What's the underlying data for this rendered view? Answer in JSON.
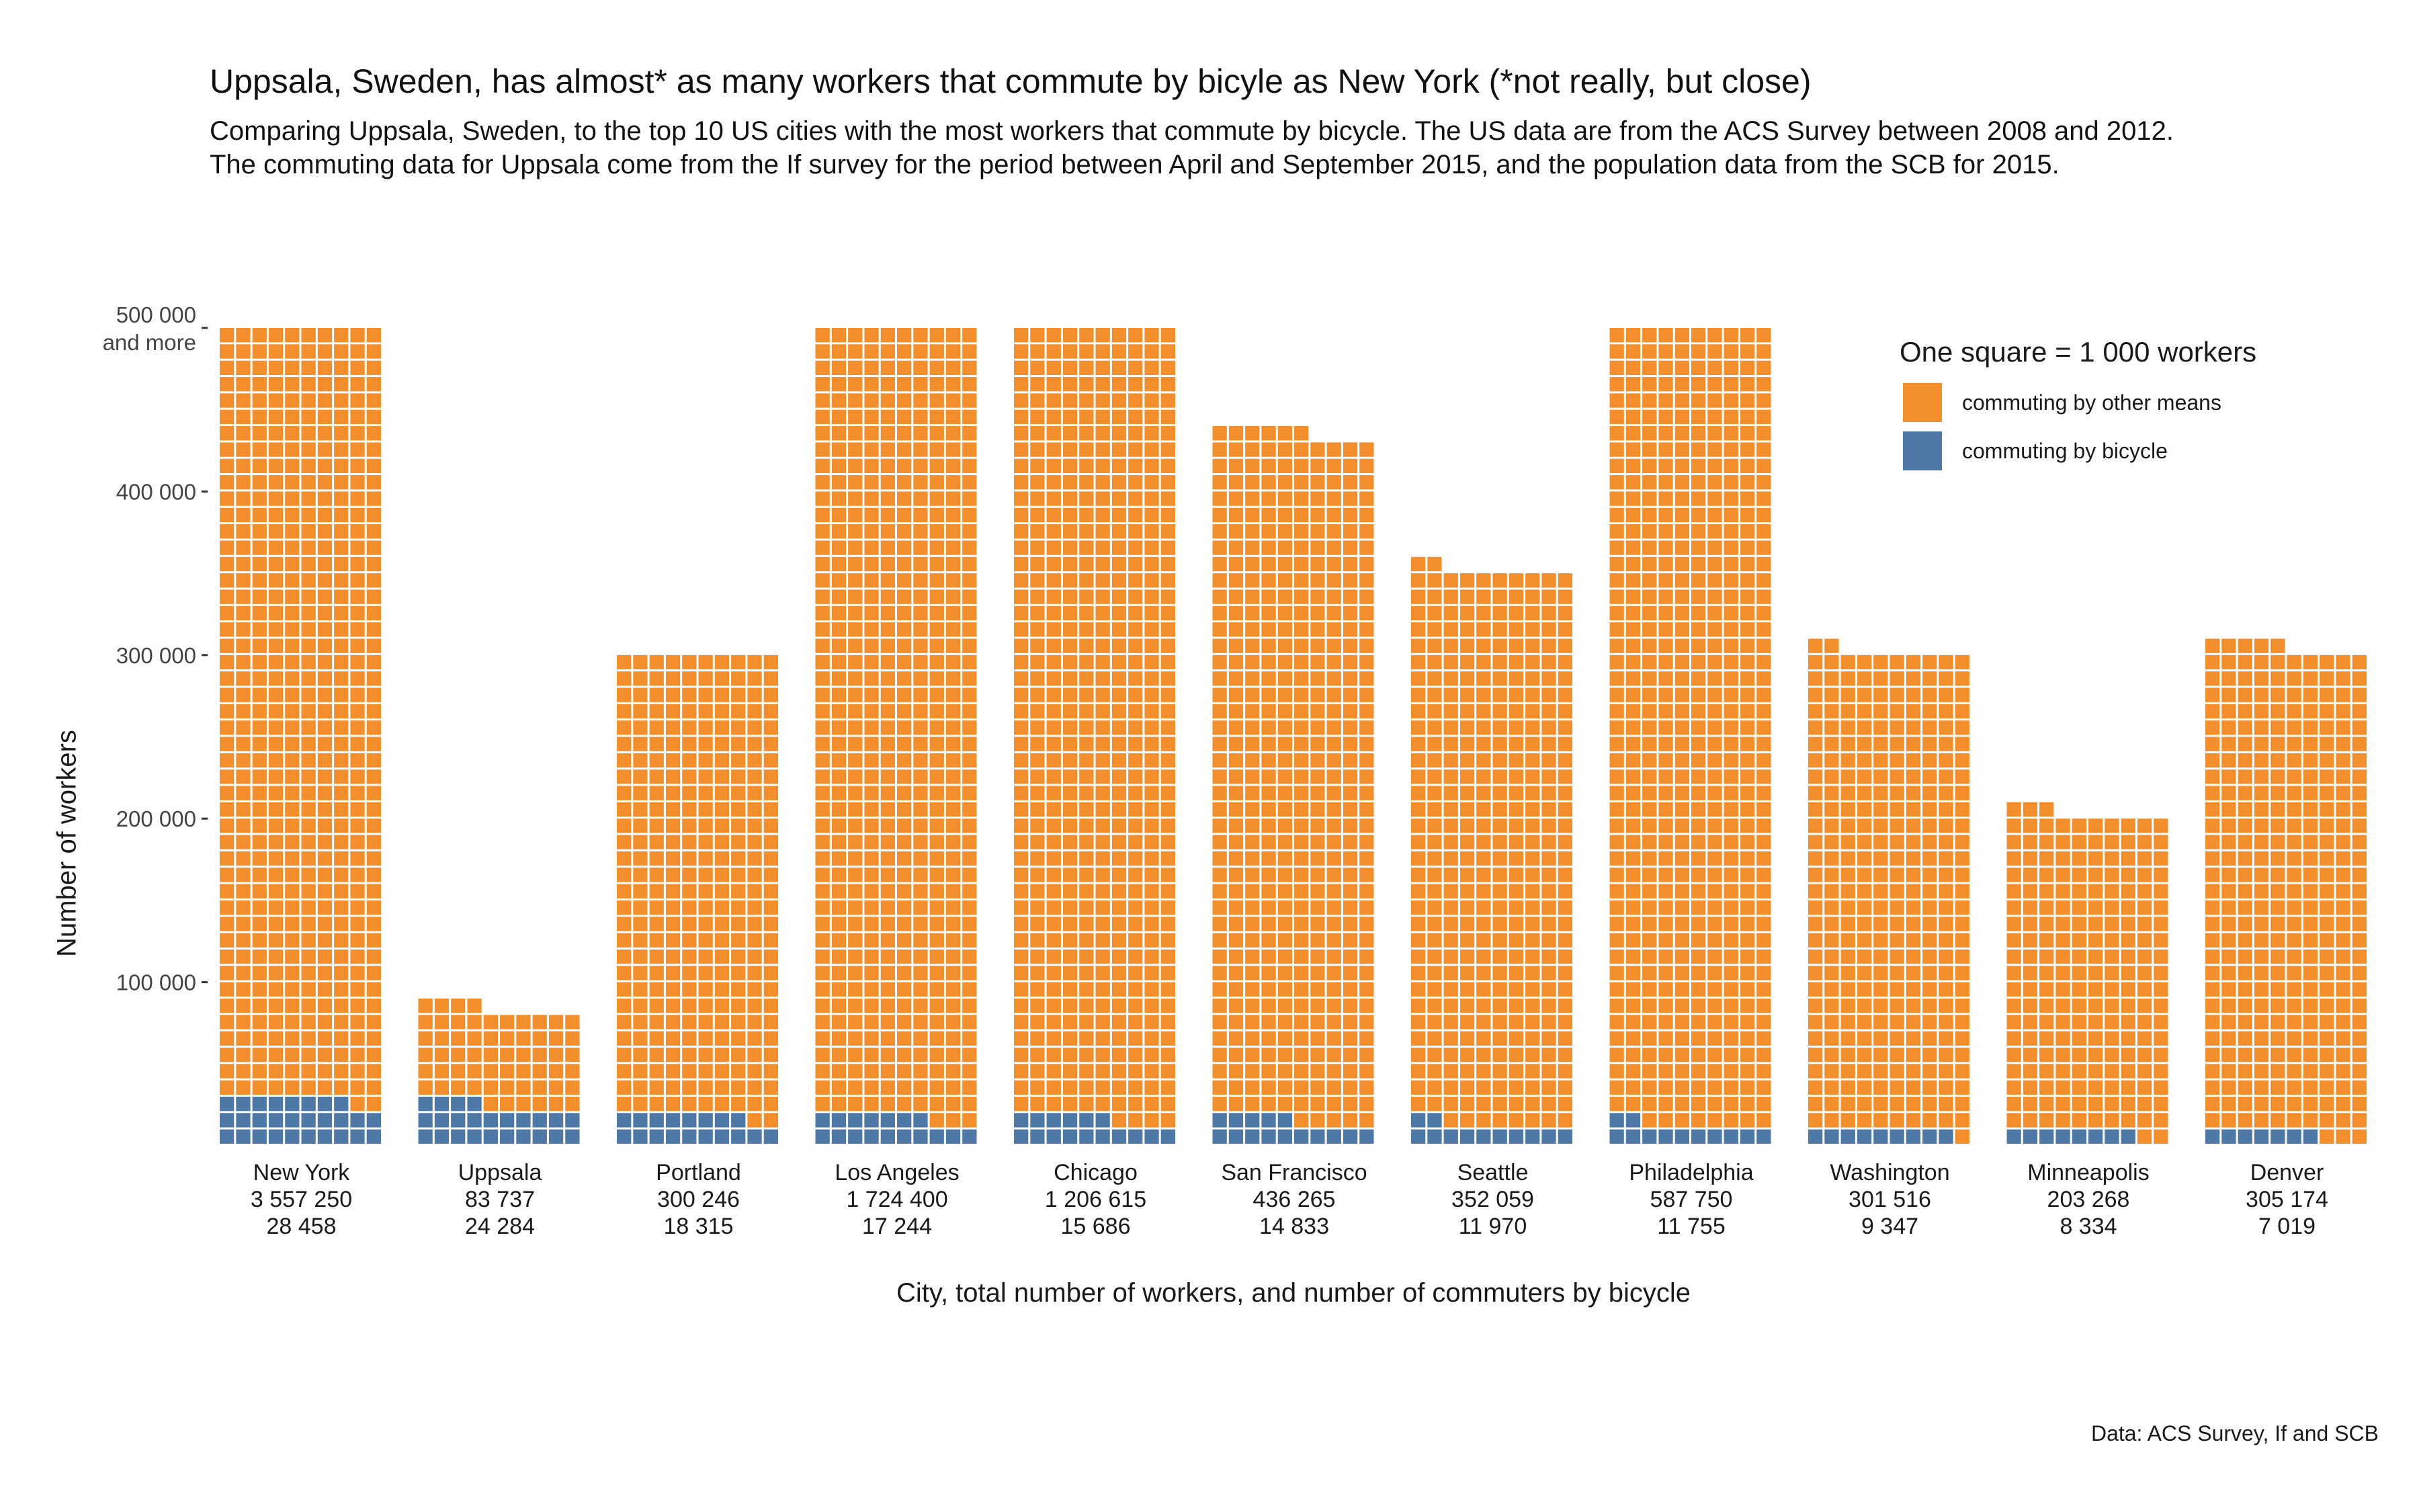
{
  "title": "Uppsala, Sweden, has almost* as many workers that commute by bicyle as New York (*not really, but close)",
  "subtitle": "Comparing Uppsala, Sweden, to the top 10 US cities with the most workers that commute by bicycle. The US data are from the ACS Survey between 2008 and 2012. The commuting data for Uppsala come from the If survey for the period between April and September 2015, and the population data from the SCB for 2015.",
  "caption": "Data: ACS Survey, If and SCB",
  "legend": {
    "title": "One square = 1 000 workers",
    "other_label": "commuting by other means",
    "bicycle_label": "commuting by bicycle"
  },
  "colors": {
    "other": "#F28E2B",
    "bicycle": "#4E79A7",
    "grid_line": "#ffffff"
  },
  "chart_data": {
    "type": "bar",
    "subtype": "waffle",
    "title": "Uppsala, Sweden, has almost* as many workers that commute by bicyle as New York (*not really, but close)",
    "xlabel": "City, total number of workers, and number of commuters by bicycle",
    "ylabel": "Number of workers",
    "ylim": [
      0,
      500000
    ],
    "cap": 500000,
    "unit_per_square": 1000,
    "y_ticks": [
      {
        "value": 100000,
        "label": "100 000"
      },
      {
        "value": 200000,
        "label": "200 000"
      },
      {
        "value": 300000,
        "label": "300 000"
      },
      {
        "value": 400000,
        "label": "400 000"
      },
      {
        "value": 500000,
        "label": "500 000",
        "label2": "and more"
      }
    ],
    "categories": [
      {
        "city": "New York",
        "total_label": "3 557 250",
        "bike_label": "28 458",
        "total": 3557250,
        "bicycle": 28458
      },
      {
        "city": "Uppsala",
        "total_label": "83 737",
        "bike_label": "24 284",
        "total": 83737,
        "bicycle": 24284
      },
      {
        "city": "Portland",
        "total_label": "300 246",
        "bike_label": "18 315",
        "total": 300246,
        "bicycle": 18315
      },
      {
        "city": "Los Angeles",
        "total_label": "1 724 400",
        "bike_label": "17 244",
        "total": 1724400,
        "bicycle": 17244
      },
      {
        "city": "Chicago",
        "total_label": "1 206 615",
        "bike_label": "15 686",
        "total": 1206615,
        "bicycle": 15686
      },
      {
        "city": "San Francisco",
        "total_label": "436 265",
        "bike_label": "14 833",
        "total": 436265,
        "bicycle": 14833
      },
      {
        "city": "Seattle",
        "total_label": "352 059",
        "bike_label": "11 970",
        "total": 352059,
        "bicycle": 11970
      },
      {
        "city": "Philadelphia",
        "total_label": "587 750",
        "bike_label": "11 755",
        "total": 587750,
        "bicycle": 11755
      },
      {
        "city": "Washington",
        "total_label": "301 516",
        "bike_label": "9 347",
        "total": 301516,
        "bicycle": 9347
      },
      {
        "city": "Minneapolis",
        "total_label": "203 268",
        "bike_label": "8 334",
        "total": 203268,
        "bicycle": 8334
      },
      {
        "city": "Denver",
        "total_label": "305 174",
        "bike_label": "7 019",
        "total": 305174,
        "bicycle": 7019
      }
    ],
    "series": [
      {
        "name": "commuting by other means"
      },
      {
        "name": "commuting by bicycle"
      }
    ]
  }
}
